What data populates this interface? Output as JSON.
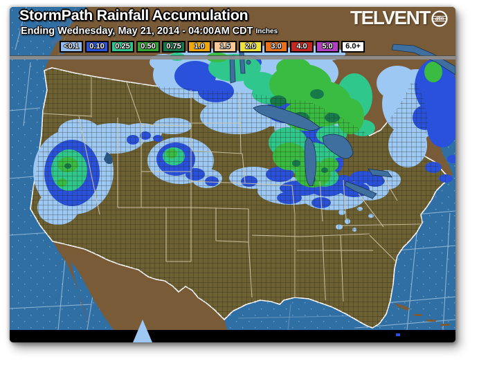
{
  "header": {
    "title": "StormPath Rainfall Accumulation",
    "subtitle": "Ending Wednesday, May 21, 2014 - 04:00AM CDT",
    "units_label": "Inches"
  },
  "brand": {
    "name": "TELVENT",
    "badge": "dtn"
  },
  "legend": {
    "items": [
      {
        "label": "<0.1",
        "color": "#93BCEF",
        "text_color": "#FFFFFF"
      },
      {
        "label": "0.10",
        "color": "#2A52DC",
        "text_color": "#FFFFFF"
      },
      {
        "label": "0.25",
        "color": "#2EC68D",
        "text_color": "#FFFFFF"
      },
      {
        "label": "0.50",
        "color": "#2FA834",
        "text_color": "#FFFFFF"
      },
      {
        "label": "0.75",
        "color": "#14784A",
        "text_color": "#FFFFFF"
      },
      {
        "label": "1.0",
        "color": "#EFA70E",
        "text_color": "#FFFFFF"
      },
      {
        "label": "1.5",
        "color": "#F9CA98",
        "text_color": "#FFFFFF"
      },
      {
        "label": "2.0",
        "color": "#EDE13C",
        "text_color": "#FFFFFF"
      },
      {
        "label": "3.0",
        "color": "#E8731C",
        "text_color": "#FFFFFF"
      },
      {
        "label": "4.0",
        "color": "#C52722",
        "text_color": "#FFFFFF"
      },
      {
        "label": "5.0",
        "color": "#B23EC2",
        "text_color": "#FFFFFF"
      },
      {
        "label": "6.0+",
        "color": "#FFFFFF",
        "text_color": "#000000"
      }
    ]
  },
  "map": {
    "colors": {
      "ocean": "#2F6FA4",
      "land_canada_mexico": "#7A5B38",
      "land_us": "#6D6134",
      "lakes": "#3F6F9E",
      "us_border": "#FFFFFF",
      "divider_bar": "#8E8E8E",
      "bottom_bar": "#000000"
    },
    "precip_palette": {
      "under_0_1_in": "#9DC8F4",
      "in_0_10": "#2A51DB",
      "in_0_25": "#30C78C",
      "in_0_50": "#3ABC42",
      "in_0_75": "#177A4B"
    }
  }
}
